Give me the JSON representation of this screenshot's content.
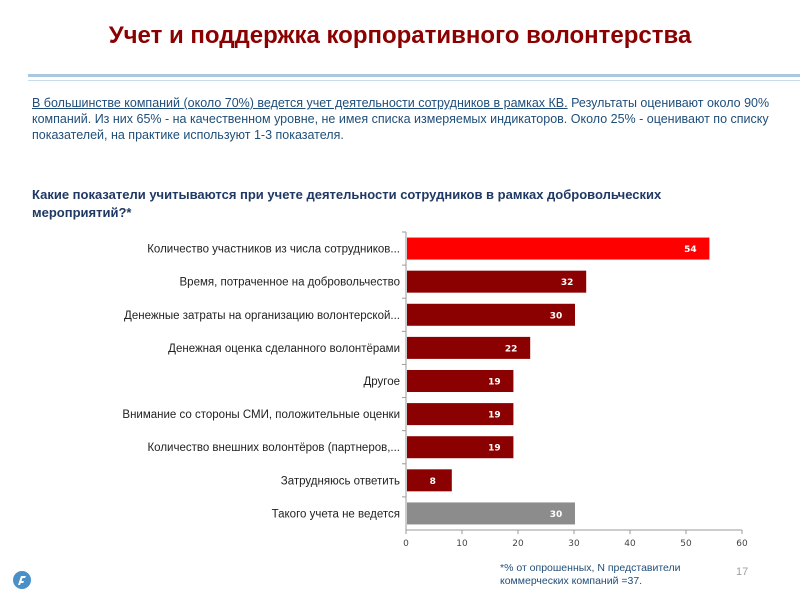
{
  "slide": {
    "title": "Учет и поддержка  корпоративного волонтерства",
    "intro_line1": "В большинстве компаний (около 70%) ведется учет деятельности сотрудников в рамках КВ.",
    "intro_rest": "Результаты оценивают около 90% компаний. Из них 65% - на качественном уровне, не имея списка измеряемых индикаторов. Около 25% - оценивают по списку показателей, на практике используют 1-3 показателя.",
    "question": "Какие показатели учитываются при учете деятельности сотрудников в рамках добровольческих мероприятий?*",
    "footnote": "*% от опрошенных, N представители коммерческих компаний =37.",
    "page_number": "17"
  },
  "colors": {
    "highlight": "#ff0000",
    "bar": "#8b0000",
    "neutral": "#8c8c8c",
    "title": "#8b0000",
    "text": "#1f4e79"
  },
  "chart_data": {
    "type": "bar",
    "orientation": "horizontal",
    "xlim": [
      0,
      60
    ],
    "xticks": [
      0,
      10,
      20,
      30,
      40,
      50,
      60
    ],
    "categories": [
      "Количество участников из числа сотрудников...",
      "Время, потраченное на добровольчество",
      "Денежные затраты на организацию волонтерской...",
      "Денежная оценка сделанного волонтёрами",
      "Другое",
      "Внимание со стороны СМИ, положительные оценки",
      "Количество внешних волонтёров (партнеров,...",
      "Затрудняюсь ответить",
      "Такого учета не ведется"
    ],
    "values": [
      54,
      32,
      30,
      22,
      19,
      19,
      19,
      8,
      30
    ],
    "bar_colors": [
      "highlight",
      "bar",
      "bar",
      "bar",
      "bar",
      "bar",
      "bar",
      "bar",
      "neutral"
    ]
  }
}
